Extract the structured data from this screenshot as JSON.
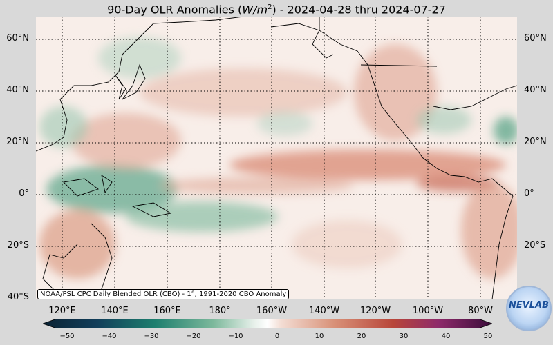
{
  "title": {
    "prefix": "90-Day OLR Anomalies (",
    "unit_main": "W/m",
    "unit_exp": "2",
    "suffix": ") - 2024-04-28 thru 2024-07-27"
  },
  "lat_labels": [
    "60°N",
    "40°N",
    "20°N",
    "0°",
    "20°S",
    "40°S"
  ],
  "lon_labels": [
    "120°E",
    "140°E",
    "160°E",
    "180°",
    "160°W",
    "140°W",
    "120°W",
    "100°W",
    "80°W"
  ],
  "credit": "NOAA/PSL CPC Daily Blended OLR (CBO) - 1°, 1991-2020 CBO Anomaly",
  "colorbar": {
    "ticks": [
      "−50",
      "−40",
      "−30",
      "−20",
      "−10",
      "0",
      "10",
      "20",
      "30",
      "40",
      "50"
    ],
    "negative_color": "#1d7f6e",
    "positive_color": "#b8463a"
  },
  "logo_text": "NEVLAB",
  "colors": {
    "land_line": "#000000",
    "ocean_base": "#f7ebe8"
  }
}
